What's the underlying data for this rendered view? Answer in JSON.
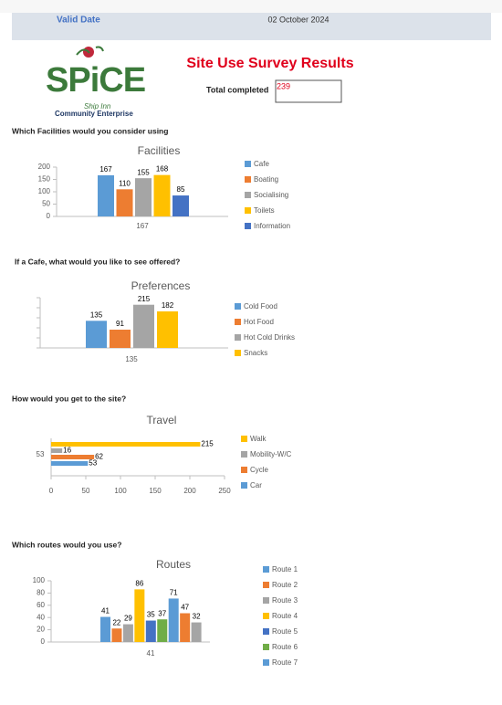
{
  "header": {
    "label": "Valid Date",
    "date": "02 October 2024"
  },
  "logo": {
    "name": "SPiCE",
    "line1": "Ship Inn",
    "line2": "Community Enterprise"
  },
  "title": "Site Use Survey Results",
  "total": {
    "label": "Total completed",
    "value": 239
  },
  "chart_data": [
    {
      "type": "bar",
      "question": "Which Facilities would you consider using",
      "title": "Facilities",
      "categories": [
        "167"
      ],
      "series": [
        {
          "name": "Cafe",
          "color": "#5b9bd5",
          "values": [
            167
          ]
        },
        {
          "name": "Boating",
          "color": "#ed7d31",
          "values": [
            110
          ]
        },
        {
          "name": "Socialising",
          "color": "#a5a5a5",
          "values": [
            155
          ]
        },
        {
          "name": "Toilets",
          "color": "#ffc000",
          "values": [
            168
          ]
        },
        {
          "name": "Information",
          "color": "#4472c4",
          "values": [
            85
          ]
        }
      ],
      "ylim": [
        0,
        200
      ],
      "yticks": [
        0,
        50,
        100,
        150,
        200
      ],
      "ytick_labels": true
    },
    {
      "type": "bar",
      "question": "If a Cafe, what would you like to see offered?",
      "title": "Preferences",
      "categories": [
        "135"
      ],
      "series": [
        {
          "name": "Cold Food",
          "color": "#5b9bd5",
          "values": [
            135
          ]
        },
        {
          "name": "Hot Food",
          "color": "#ed7d31",
          "values": [
            91
          ]
        },
        {
          "name": "Hot Cold Drinks",
          "color": "#a5a5a5",
          "values": [
            215
          ]
        },
        {
          "name": "Snacks",
          "color": "#ffc000",
          "values": [
            182
          ]
        }
      ],
      "ylim": [
        0,
        250
      ],
      "yticks": [
        0,
        50,
        100,
        150,
        200,
        250
      ],
      "ytick_labels": false
    },
    {
      "type": "hbar",
      "question": "How would you get to the site?",
      "title": "Travel",
      "categories": [
        "53"
      ],
      "series": [
        {
          "name": "Walk",
          "color": "#ffc000",
          "values": [
            215
          ]
        },
        {
          "name": "Mobility-W/C",
          "color": "#a5a5a5",
          "values": [
            16
          ]
        },
        {
          "name": "Cycle",
          "color": "#ed7d31",
          "values": [
            62
          ]
        },
        {
          "name": "Car",
          "color": "#5b9bd5",
          "values": [
            53
          ]
        }
      ],
      "xlim": [
        0,
        250
      ],
      "xticks": [
        0,
        50,
        100,
        150,
        200,
        250
      ]
    },
    {
      "type": "bar",
      "question": "Which routes would you use?",
      "title": "Routes",
      "categories": [
        "41"
      ],
      "series": [
        {
          "name": "Route 1",
          "color": "#5b9bd5",
          "values": [
            41
          ]
        },
        {
          "name": "Route 2",
          "color": "#ed7d31",
          "values": [
            22
          ]
        },
        {
          "name": "Route 3",
          "color": "#a5a5a5",
          "values": [
            29
          ]
        },
        {
          "name": "Route 4",
          "color": "#ffc000",
          "values": [
            86
          ]
        },
        {
          "name": "Route 5",
          "color": "#4472c4",
          "values": [
            35
          ]
        },
        {
          "name": "Route 6",
          "color": "#70ad47",
          "values": [
            37
          ]
        },
        {
          "name": "Route 7",
          "color": "#5b9bd5",
          "values": [
            71
          ]
        },
        {
          "name": null,
          "color": "#ed7d31",
          "values": [
            47
          ]
        },
        {
          "name": null,
          "color": "#a5a5a5",
          "values": [
            32
          ]
        }
      ],
      "ylim": [
        0,
        100
      ],
      "yticks": [
        0,
        20,
        40,
        60,
        80,
        100
      ],
      "ytick_labels": true
    }
  ]
}
